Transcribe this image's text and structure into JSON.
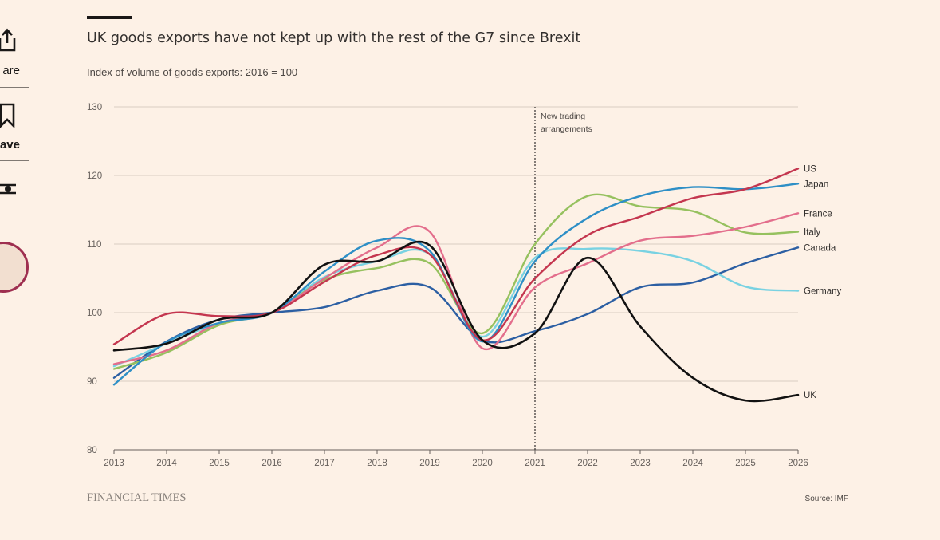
{
  "toolbar": {
    "share_label": "are",
    "save_label": "ave",
    "share_icon": "share-icon",
    "save_icon": "bookmark-icon",
    "settings_icon": "sliders-icon"
  },
  "colors": {
    "background": "#fdf1e6",
    "grid": "#d9cdc2",
    "axis_text": "#66605c",
    "avatar_ring": "#9e2f50"
  },
  "chart_data": {
    "type": "line",
    "title": "UK goods exports have not kept up with the rest of the G7 since Brexit",
    "subtitle": "Index of volume of goods exports: 2016 = 100",
    "xlabel": "",
    "ylabel": "",
    "xlim": [
      2013,
      2026
    ],
    "ylim": [
      80,
      130
    ],
    "xticks": [
      "2013",
      "2014",
      "2015",
      "2016",
      "2017",
      "2018",
      "2019",
      "2020",
      "2021",
      "2022",
      "2023",
      "2024",
      "2025",
      "2026"
    ],
    "yticks": [
      "80",
      "90",
      "100",
      "110",
      "120",
      "130"
    ],
    "grid": true,
    "annotation": {
      "x": 2021,
      "text": [
        "New trading",
        "arrangements"
      ]
    },
    "source": "Source: IMF",
    "brand": "FINANCIAL TIMES",
    "series": [
      {
        "name": "US",
        "color": "#c4364f",
        "x": [
          2013,
          2014,
          2015,
          2016,
          2017,
          2018,
          2019,
          2020,
          2021,
          2022,
          2023,
          2024,
          2025,
          2026
        ],
        "values": [
          95.4,
          99.8,
          99.5,
          100,
          104.5,
          108.4,
          108.5,
          96,
          105,
          111.3,
          114,
          116.7,
          118,
          121
        ]
      },
      {
        "name": "Japan",
        "color": "#2e8fc6",
        "x": [
          2013,
          2014,
          2015,
          2016,
          2017,
          2018,
          2019,
          2020,
          2021,
          2022,
          2023,
          2024,
          2025,
          2026
        ],
        "values": [
          89.5,
          95.7,
          98.5,
          100,
          106,
          110.5,
          109,
          95.8,
          107.5,
          113.8,
          117,
          118.3,
          118,
          118.8
        ]
      },
      {
        "name": "France",
        "color": "#e36e8c",
        "x": [
          2013,
          2014,
          2015,
          2016,
          2017,
          2018,
          2019,
          2020,
          2021,
          2022,
          2023,
          2024,
          2025,
          2026
        ],
        "values": [
          92.5,
          94.5,
          98.5,
          100,
          105,
          109.5,
          111.8,
          94.8,
          103.7,
          107.2,
          110.5,
          111.2,
          112.5,
          114.5
        ]
      },
      {
        "name": "Italy",
        "color": "#96c15f",
        "x": [
          2013,
          2014,
          2015,
          2016,
          2017,
          2018,
          2019,
          2020,
          2021,
          2022,
          2023,
          2024,
          2025,
          2026
        ],
        "values": [
          91.8,
          94.2,
          98.2,
          100,
          104.8,
          106.5,
          107.2,
          97,
          110,
          117,
          115.5,
          114.8,
          111.7,
          111.8
        ]
      },
      {
        "name": "Canada",
        "color": "#2c5fa3",
        "x": [
          2013,
          2014,
          2015,
          2016,
          2017,
          2018,
          2019,
          2020,
          2021,
          2022,
          2023,
          2024,
          2025,
          2026
        ],
        "values": [
          90.5,
          95.8,
          99,
          100,
          100.8,
          103.2,
          103.7,
          96,
          97.3,
          99.8,
          103.7,
          104.4,
          107.2,
          109.5
        ]
      },
      {
        "name": "Germany",
        "color": "#79d2e2",
        "x": [
          2013,
          2014,
          2015,
          2016,
          2017,
          2018,
          2019,
          2020,
          2021,
          2022,
          2023,
          2024,
          2025,
          2026
        ],
        "values": [
          92.2,
          95.5,
          98.5,
          100,
          105.2,
          107.5,
          108.5,
          96.5,
          108,
          109.3,
          109,
          107.5,
          103.8,
          103.2
        ]
      },
      {
        "name": "UK",
        "color": "#111111",
        "x": [
          2013,
          2014,
          2015,
          2016,
          2017,
          2018,
          2019,
          2020,
          2021,
          2022,
          2023,
          2024,
          2025,
          2026
        ],
        "values": [
          94.5,
          95.5,
          99,
          100,
          107,
          107.5,
          109.8,
          96,
          97,
          108,
          98,
          90.5,
          87.2,
          88
        ]
      }
    ]
  }
}
